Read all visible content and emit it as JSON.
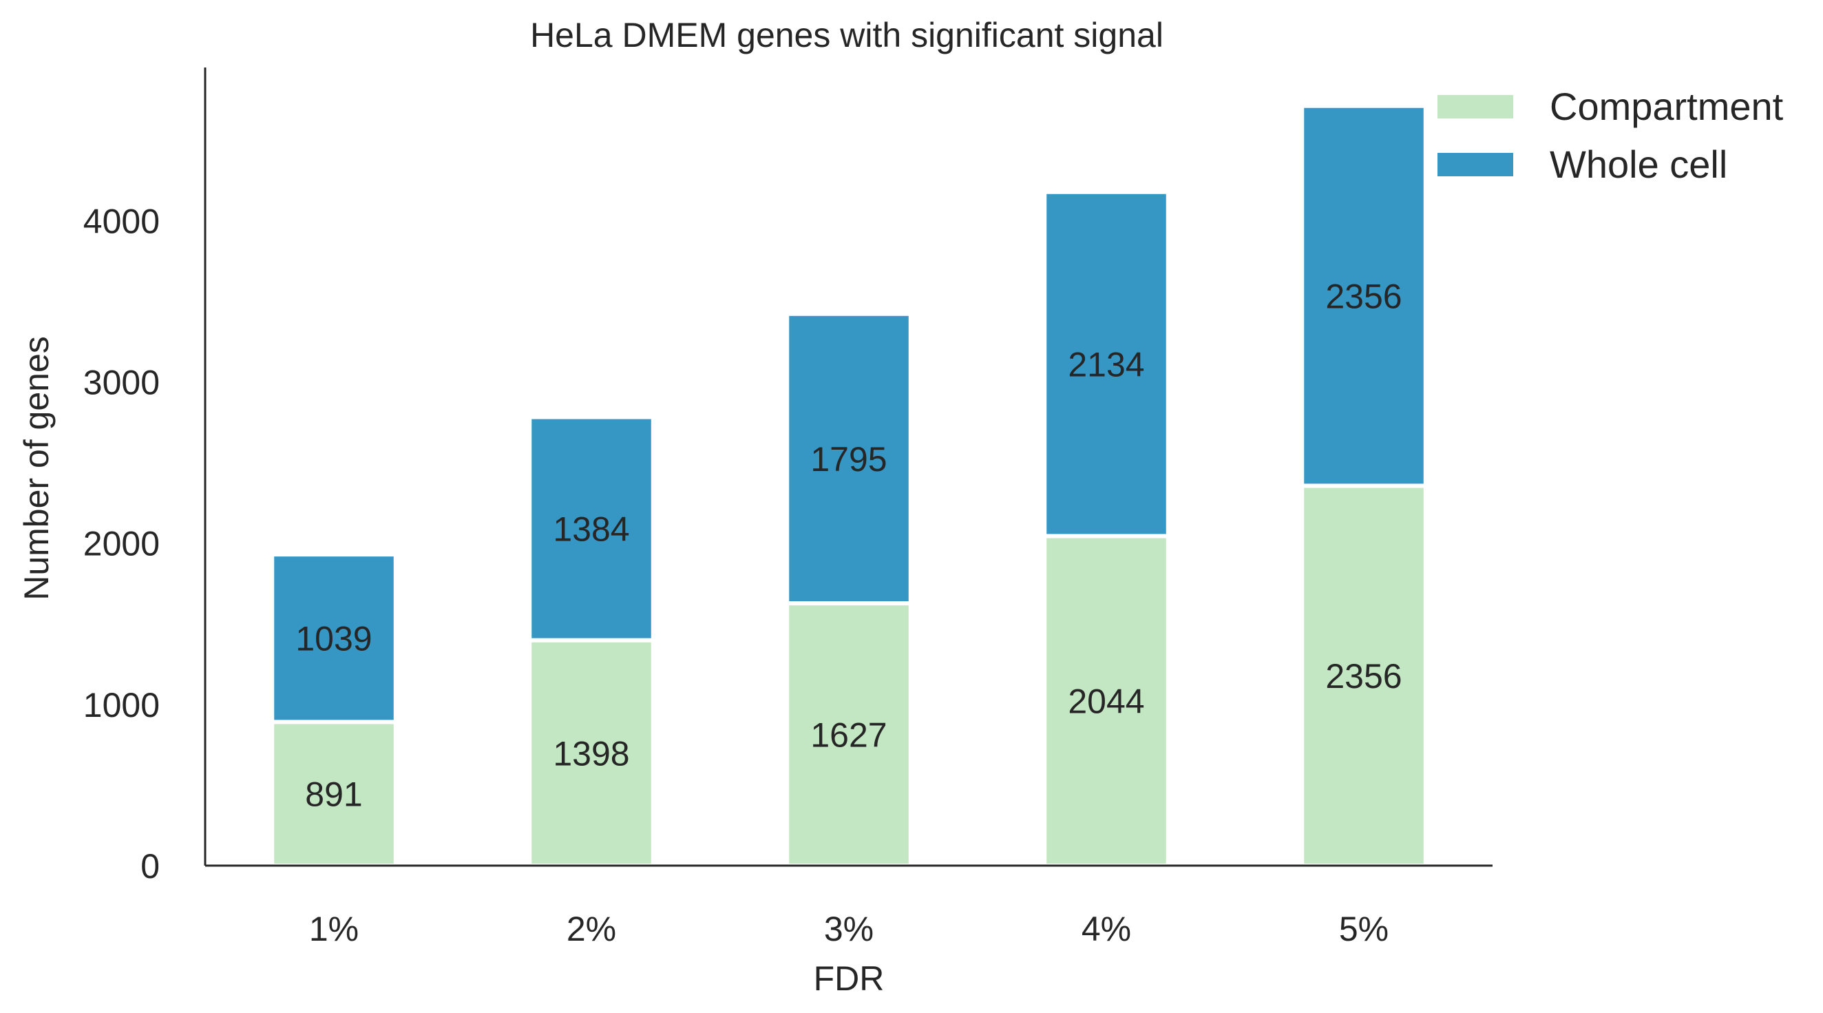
{
  "chart_data": {
    "type": "bar",
    "stacked": true,
    "title": "HeLa DMEM genes with significant signal",
    "xlabel": "FDR",
    "ylabel": "Number of genes",
    "categories": [
      "1%",
      "2%",
      "3%",
      "4%",
      "5%"
    ],
    "series": [
      {
        "name": "Compartment",
        "color": "#c3e7c2",
        "values": [
          891,
          1398,
          1627,
          2044,
          2356
        ]
      },
      {
        "name": "Whole cell",
        "color": "#3696c4",
        "values": [
          1039,
          1384,
          1795,
          2134,
          2356
        ]
      }
    ],
    "ylim": [
      0,
      4950
    ],
    "yticks": [
      0,
      1000,
      2000,
      3000,
      4000
    ],
    "grid": false,
    "legend": "top-right"
  }
}
